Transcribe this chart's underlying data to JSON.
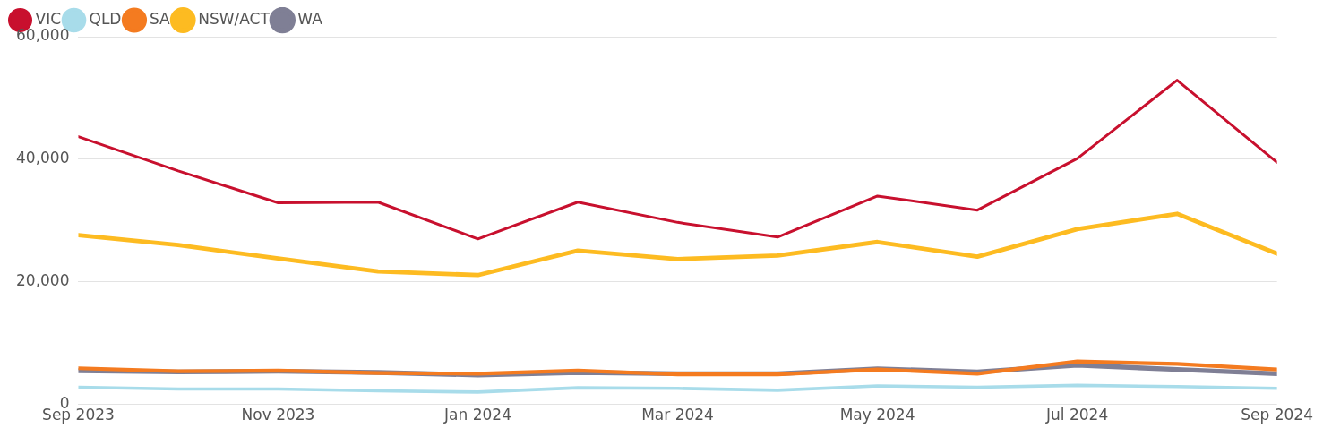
{
  "chart_data": {
    "type": "line",
    "x": [
      "2023-09",
      "2023-10",
      "2023-11",
      "2023-12",
      "2024-01",
      "2024-02",
      "2024-03",
      "2024-04",
      "2024-05",
      "2024-06",
      "2024-07",
      "2024-08",
      "2024-09"
    ],
    "series": [
      {
        "name": "VIC",
        "color": "#c8102e",
        "values": [
          43700,
          38100,
          32900,
          33000,
          27000,
          33000,
          29700,
          27300,
          34000,
          31700,
          40100,
          52900,
          39500
        ]
      },
      {
        "name": "QLD",
        "color": "#a8dcea",
        "values": [
          2800,
          2500,
          2500,
          2200,
          2000,
          2700,
          2600,
          2300,
          3000,
          2800,
          3100,
          2900,
          2600
        ]
      },
      {
        "name": "SA",
        "color": "#f47b20",
        "values": [
          5900,
          5400,
          5500,
          5100,
          5000,
          5500,
          4900,
          4900,
          5700,
          5000,
          7000,
          6600,
          5700
        ]
      },
      {
        "name": "NSW/ACT",
        "color": "#fdbb21",
        "values": [
          27600,
          26000,
          23800,
          21700,
          21100,
          25100,
          23700,
          24300,
          26500,
          24100,
          28600,
          31100,
          24600
        ]
      },
      {
        "name": "WA",
        "color": "#7f7f95",
        "values": [
          5500,
          5300,
          5400,
          5200,
          4800,
          5200,
          5000,
          5000,
          5800,
          5300,
          6400,
          5700,
          5000
        ]
      }
    ],
    "xlim": [
      "2023-09",
      "2024-09"
    ],
    "xticks": [
      {
        "value": "2023-09",
        "label": "Sep 2023"
      },
      {
        "value": "2023-11",
        "label": "Nov 2023"
      },
      {
        "value": "2024-01",
        "label": "Jan 2024"
      },
      {
        "value": "2024-03",
        "label": "Mar 2024"
      },
      {
        "value": "2024-05",
        "label": "May 2024"
      },
      {
        "value": "2024-07",
        "label": "Jul 2024"
      },
      {
        "value": "2024-09",
        "label": "Sep 2024"
      }
    ],
    "ylim": [
      0,
      60000
    ],
    "yticks": [
      0,
      {
        "value": 20000,
        "label": "20,000"
      },
      {
        "value": 40000,
        "label": "40,000"
      },
      {
        "value": 60000,
        "label": "60,000"
      }
    ],
    "grid": "y",
    "legend": "top left",
    "marker": "none",
    "line_style": "solid"
  }
}
